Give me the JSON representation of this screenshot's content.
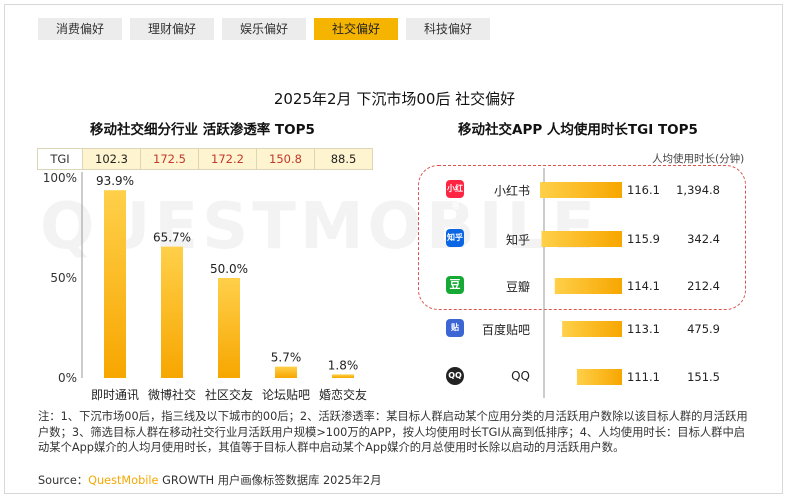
{
  "tabs": [
    "消费偏好",
    "理财偏好",
    "娱乐偏好",
    "社交偏好",
    "科技偏好"
  ],
  "active_tab": 3,
  "main_title": "2025年2月 下沉市场00后 社交偏好",
  "left_title": "移动社交细分行业 活跃渗透率 TOP5",
  "right_title": "移动社交APP 人均使用时长TGI TOP5",
  "watermark": "QUESTMOBILE",
  "tgi_header": "TGI",
  "right_unit": "人均使用时长(分钟)",
  "colors": {
    "accent": "#f5b400",
    "bar_light": "#ffd04a",
    "bar_dark": "#f7a600",
    "tgi_high": "#c0392b",
    "tab_active": "#f5b400"
  },
  "icons": [
    "xiaohongshu-icon",
    "zhihu-icon",
    "douban-icon",
    "tieba-icon",
    "qq-icon"
  ],
  "chart_data": [
    {
      "type": "bar",
      "title": "移动社交细分行业 活跃渗透率 TOP5",
      "categories": [
        "即时通讯",
        "微博社交",
        "社区交友",
        "论坛贴吧",
        "婚恋交友"
      ],
      "values": [
        93.9,
        65.7,
        50.0,
        5.7,
        1.8
      ],
      "value_labels": [
        "93.9%",
        "65.7%",
        "50.0%",
        "5.7%",
        "1.8%"
      ],
      "tgi": [
        "102.3",
        "172.5",
        "172.2",
        "150.8",
        "88.5"
      ],
      "tgi_highlight": [
        false,
        true,
        true,
        true,
        false
      ],
      "yticks": [
        "100%",
        "50%",
        "0%"
      ],
      "ylim": [
        0,
        100
      ]
    },
    {
      "type": "bar",
      "orientation": "horizontal",
      "title": "移动社交APP 人均使用时长TGI TOP5",
      "categories": [
        "小红书",
        "知乎",
        "豆瓣",
        "百度贴吧",
        "QQ"
      ],
      "tgi": [
        116.1,
        115.9,
        114.1,
        113.1,
        111.1
      ],
      "minutes": [
        "1,394.8",
        "342.4",
        "212.4",
        "475.9",
        "151.5"
      ],
      "highlighted_top": 3
    }
  ],
  "note": "注：1、下沉市场00后，指三线及以下城市的00后；2、活跃渗透率：某目标人群启动某个应用分类的月活跃用户数除以该目标人群的月活跃用户数；3、筛选目标人群在移动社交行业月活跃用户规模>100万的APP，按人均使用时长TGI从高到低排序；4、人均使用时长：目标人群中启动某个App媒介的人均月使用时长，其值等于目标人群中启动某个App媒介的月总使用时长除以启动的月活跃用户数。",
  "source_prefix": "Source：",
  "source_brand": "QuestMobile",
  "source_suffix": " GROWTH 用户画像标签数据库 2025年2月"
}
